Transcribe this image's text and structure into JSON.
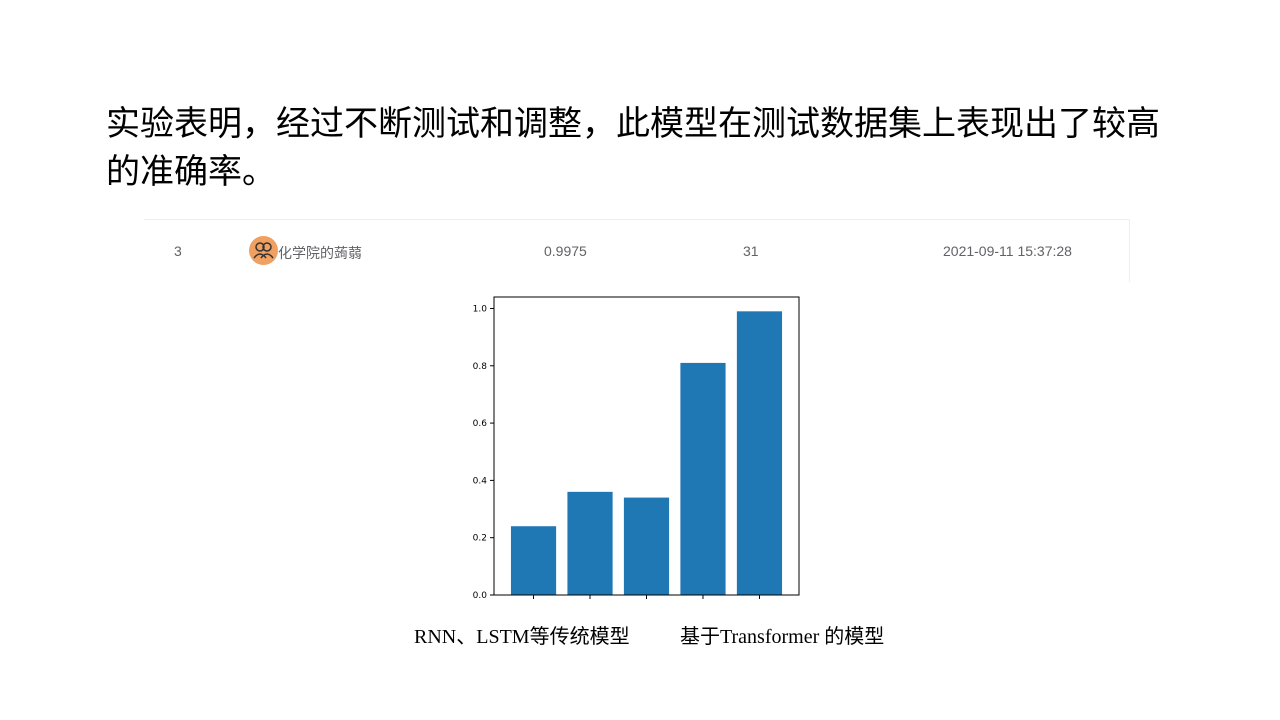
{
  "heading": "  实验表明，经过不断测试和调整，此模型在测试数据集上表现出了较高的准确率。",
  "leaderboard_row": {
    "rank": "3",
    "user": "化学院的蒟蒻",
    "score": "0.9975",
    "submissions": "31",
    "time": "2021-09-11 15:37:28"
  },
  "captions": {
    "left": "RNN、LSTM等传统模型",
    "right": "基于Transformer 的模型"
  },
  "chart_data": {
    "type": "bar",
    "values": [
      0.24,
      0.36,
      0.34,
      0.81,
      0.99
    ],
    "ylim": [
      0,
      1.04
    ],
    "yticks": [
      "0.0",
      "0.2",
      "0.4",
      "0.6",
      "0.8",
      "1.0"
    ],
    "bar_color": "#1f77b4",
    "grid": false
  }
}
